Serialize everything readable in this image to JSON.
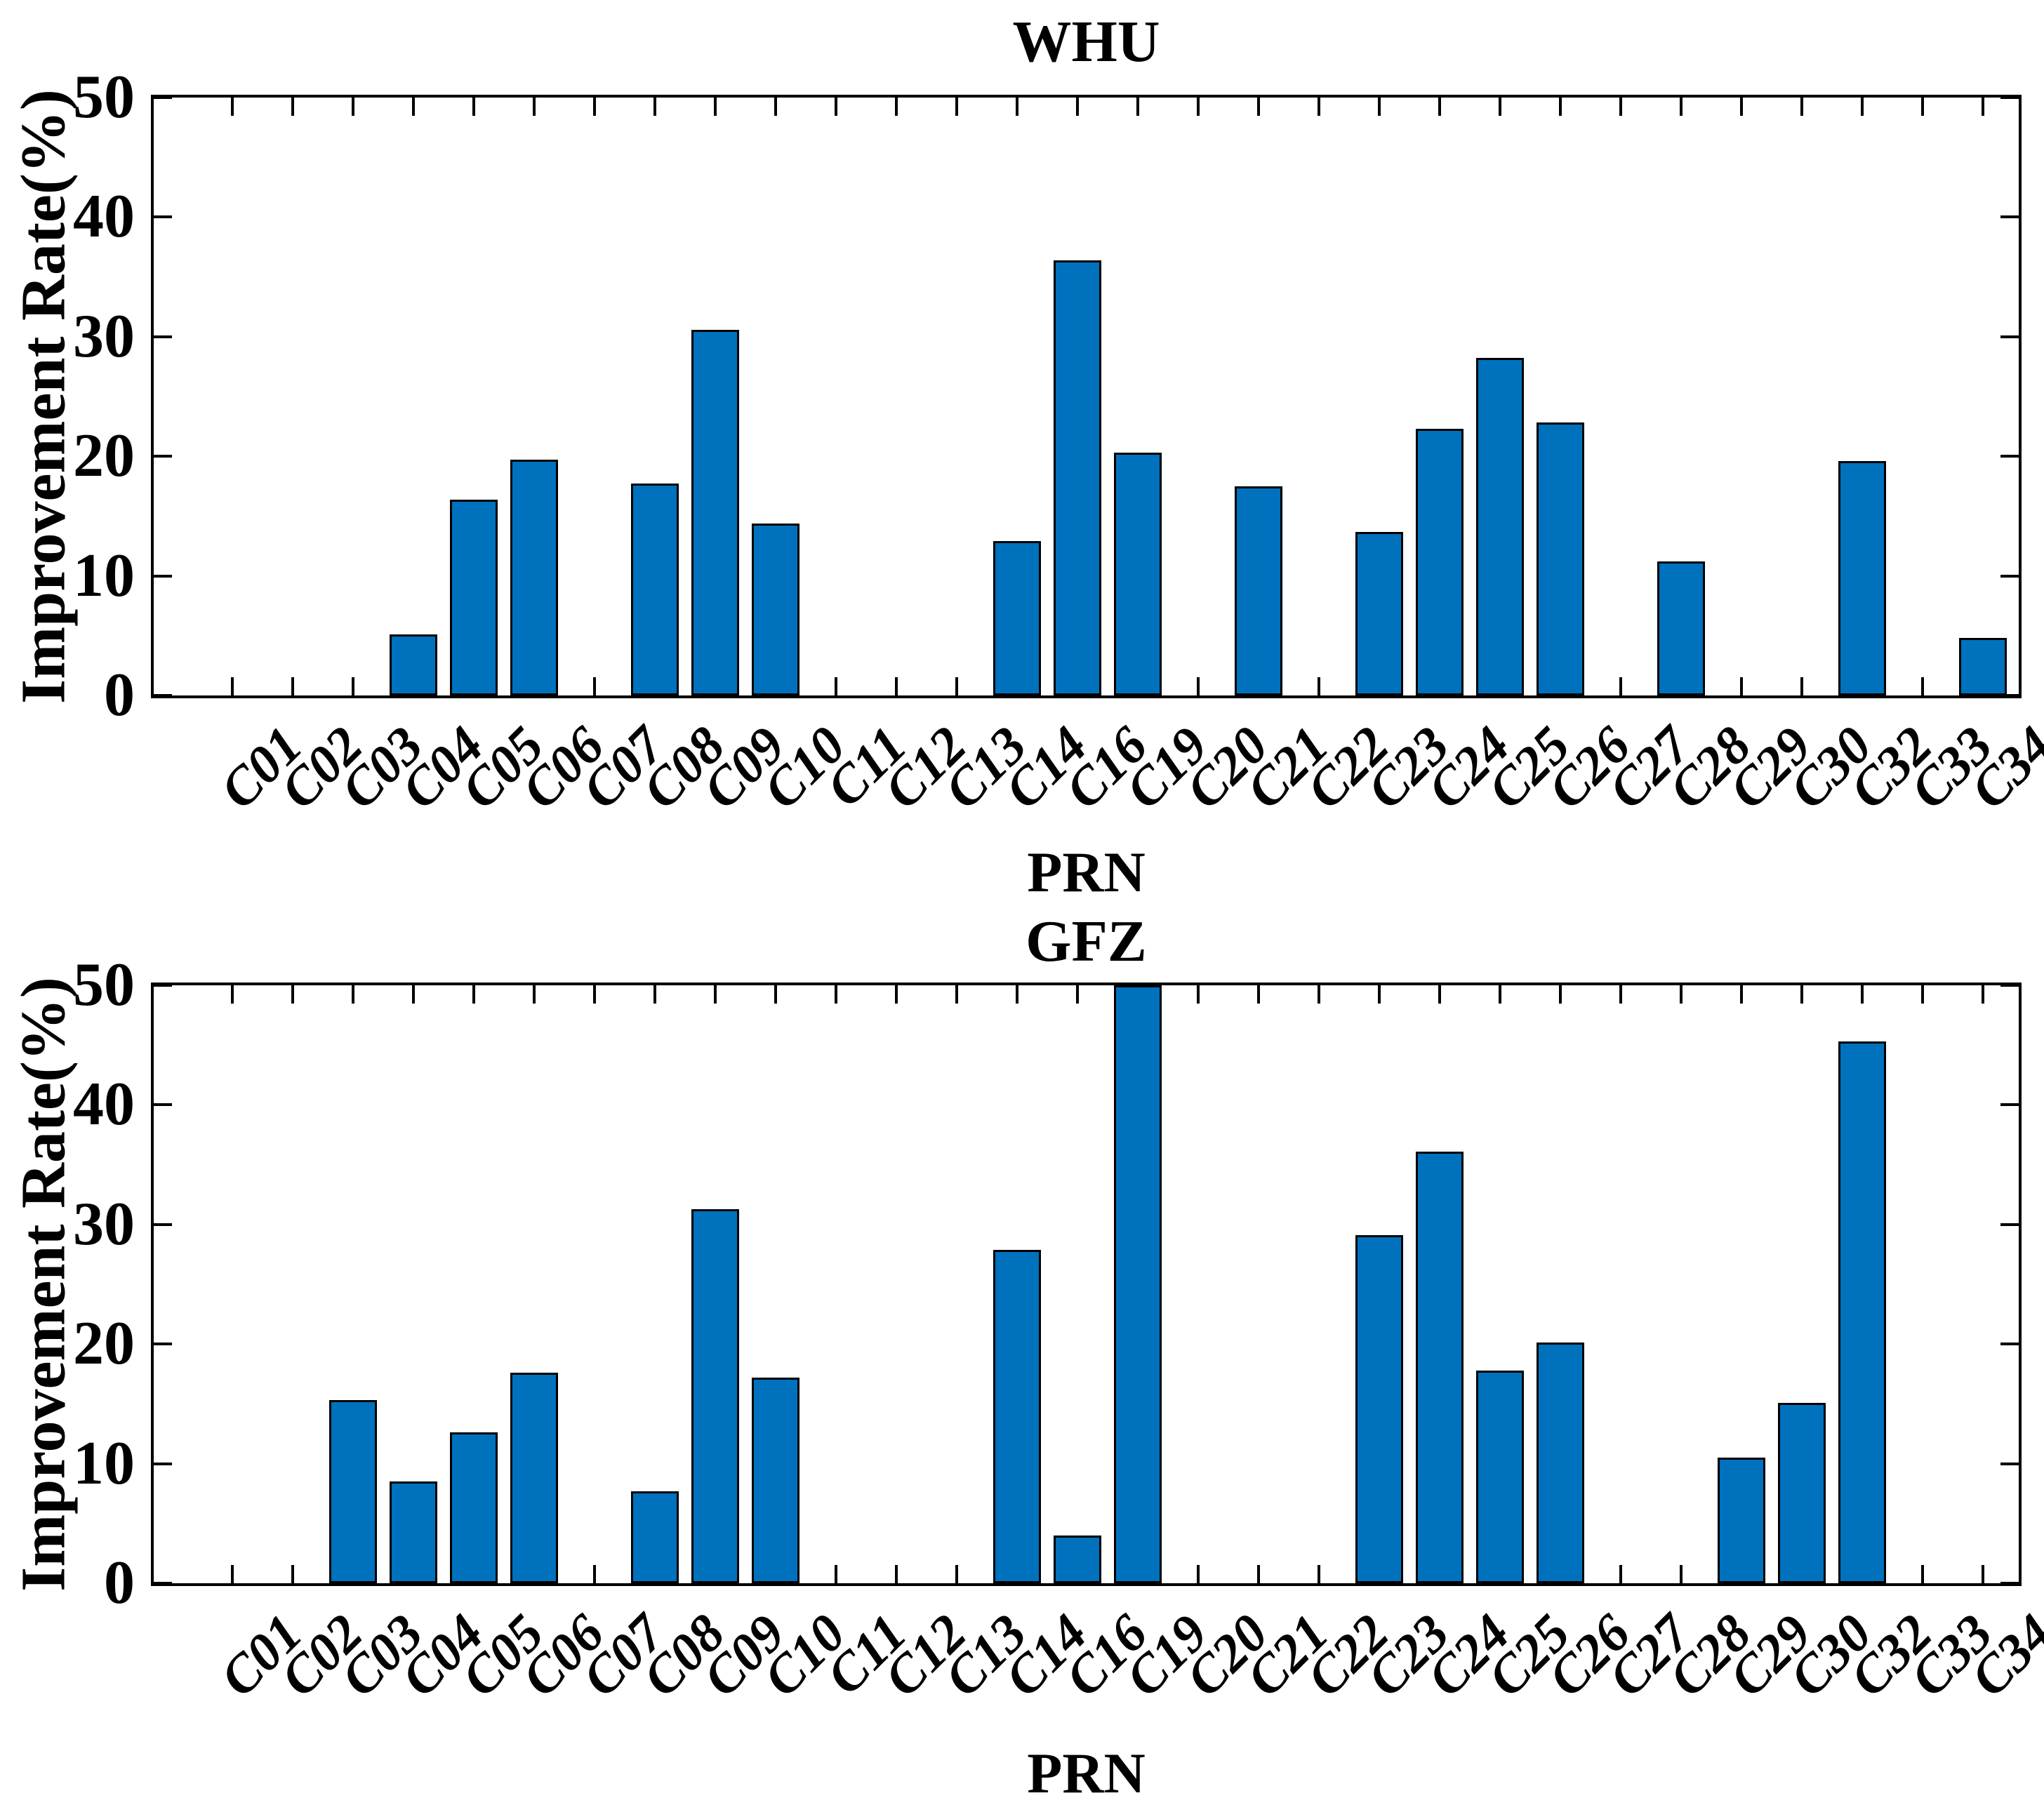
{
  "colors": {
    "bar_fill": "#0072BD",
    "bar_edge": "#000000",
    "axis": "#000000",
    "background": "#FFFFFF",
    "text": "#000000"
  },
  "chart_data": [
    {
      "type": "bar",
      "title": "WHU",
      "xlabel": "PRN",
      "ylabel": "Improvement Rate(%)",
      "ylim": [
        0,
        50
      ],
      "yticks": [
        0,
        10,
        20,
        30,
        40,
        50
      ],
      "grid": false,
      "legend_position": "none",
      "categories": [
        "C01",
        "C02",
        "C03",
        "C04",
        "C05",
        "C06",
        "C07",
        "C08",
        "C09",
        "C10",
        "C11",
        "C12",
        "C13",
        "C14",
        "C16",
        "C19",
        "C20",
        "C21",
        "C22",
        "C23",
        "C24",
        "C25",
        "C26",
        "C27",
        "C28",
        "C29",
        "C30",
        "C32",
        "C33",
        "C34"
      ],
      "values": [
        0,
        0,
        0,
        5.1,
        16.4,
        19.7,
        0,
        17.7,
        30.6,
        14.4,
        0,
        0,
        0,
        12.9,
        36.4,
        20.3,
        0,
        17.5,
        0,
        13.7,
        22.3,
        28.2,
        22.8,
        0,
        11.2,
        0,
        0,
        19.6,
        0,
        4.8
      ]
    },
    {
      "type": "bar",
      "title": "GFZ",
      "xlabel": "PRN",
      "ylabel": "Improvement Rate(%)",
      "ylim": [
        0,
        50
      ],
      "yticks": [
        0,
        10,
        20,
        30,
        40,
        50
      ],
      "grid": false,
      "legend_position": "none",
      "categories": [
        "C01",
        "C02",
        "C03",
        "C04",
        "C05",
        "C06",
        "C07",
        "C08",
        "C09",
        "C10",
        "C11",
        "C12",
        "C13",
        "C14",
        "C16",
        "C19",
        "C20",
        "C21",
        "C22",
        "C23",
        "C24",
        "C25",
        "C26",
        "C27",
        "C28",
        "C29",
        "C30",
        "C32",
        "C33",
        "C34"
      ],
      "values": [
        0,
        0,
        15.3,
        8.5,
        12.6,
        17.6,
        0,
        7.7,
        31.3,
        17.2,
        0,
        0,
        0,
        27.9,
        4.0,
        50,
        0,
        0,
        0,
        29.1,
        36.1,
        17.8,
        20.1,
        0,
        0,
        10.5,
        15.1,
        45.3,
        0,
        0
      ]
    }
  ]
}
